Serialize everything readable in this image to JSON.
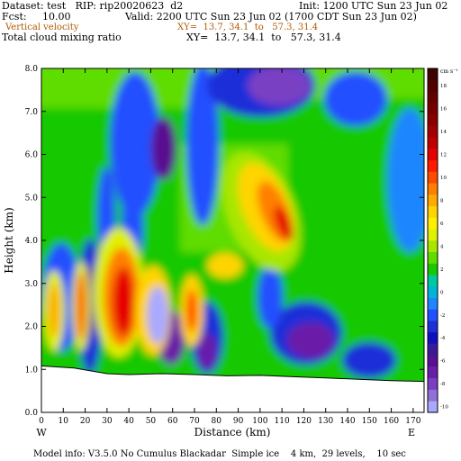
{
  "header": {
    "dataset_line": "Dataset: test   RIP: rip20020623  d2",
    "init_line": "Init: 1200 UTC Sun 23 Jun 02",
    "fcst_line": "Fcst:     10.00",
    "valid_line": "Valid: 2200 UTC Sun 23 Jun 02 (1700 CDT Sun 23 Jun 02)",
    "field1_label": "Vertical velocity",
    "field1_xy": "XY=  13.7, 34.1  to   57.3, 31.4",
    "field2_label": "Total cloud mixing ratio",
    "field2_xy": "XY=  13.7, 34.1  to   57.3, 31.4"
  },
  "footer": {
    "model_info": "Model info: V3.5.0 No Cumulus Blackadar  Simple ice    4 km,  29 levels,    10 sec"
  },
  "colors": {
    "field1_text": "#b05a00",
    "terrain": "#ffffff"
  },
  "chart_data": {
    "type": "heatmap",
    "xlabel": "Distance (km)",
    "ylabel": "Height (km)",
    "xlim": [
      0,
      175
    ],
    "ylim": [
      0,
      8
    ],
    "x_ticks": [
      0,
      10,
      20,
      30,
      40,
      50,
      60,
      70,
      80,
      90,
      100,
      110,
      120,
      130,
      140,
      150,
      160,
      170
    ],
    "y_ticks": [
      0.0,
      1.0,
      2.0,
      3.0,
      4.0,
      5.0,
      6.0,
      7.0,
      8.0
    ],
    "x_tick_labels": [
      "0",
      "10",
      "20",
      "30",
      "40",
      "50",
      "60",
      "70",
      "80",
      "90",
      "100",
      "110",
      "120",
      "130",
      "140",
      "150",
      "160",
      "170"
    ],
    "y_tick_labels": [
      "0.0",
      "1.0",
      "2.0",
      "3.0",
      "4.0",
      "5.0",
      "6.0",
      "7.0",
      "8.0"
    ],
    "left_end_label": "W",
    "right_end_label": "E",
    "colorbar_units": "cm s⁻¹",
    "colorbar_labels": [
      "18",
      "16",
      "14",
      "12",
      "10",
      "8",
      "6",
      "4",
      "2",
      "0",
      "-2",
      "-4",
      "-6",
      "-8",
      "-10"
    ],
    "color_levels": [
      -10,
      -9,
      -8,
      -7,
      -6,
      -5,
      -4,
      -3,
      -2,
      -1,
      0,
      1,
      2,
      3,
      4,
      5,
      6,
      7,
      8,
      9,
      10,
      11,
      12,
      13,
      14,
      15,
      16,
      17,
      18,
      19
    ],
    "color_scale": [
      "#a9a9ff",
      "#8f6fd8",
      "#7a3fc4",
      "#6a1fa8",
      "#5a1090",
      "#3a1a9a",
      "#1010c0",
      "#1c2fd8",
      "#2050ff",
      "#1f86ff",
      "#00b4d8",
      "#00c8a0",
      "#19c800",
      "#5fdc00",
      "#a8e600",
      "#dff000",
      "#fff000",
      "#ffd400",
      "#ffaa00",
      "#ff7f00",
      "#ff4a00",
      "#ff1a00",
      "#e60000",
      "#c20000",
      "#a50000",
      "#8a0000",
      "#760000",
      "#650000",
      "#520000",
      "#3f0000"
    ],
    "terrain_height_km": [
      [
        0,
        1.08
      ],
      [
        15,
        1.03
      ],
      [
        30,
        0.9
      ],
      [
        40,
        0.88
      ],
      [
        55,
        0.9
      ],
      [
        70,
        0.88
      ],
      [
        85,
        0.85
      ],
      [
        100,
        0.86
      ],
      [
        115,
        0.83
      ],
      [
        130,
        0.8
      ],
      [
        145,
        0.77
      ],
      [
        160,
        0.74
      ],
      [
        175,
        0.72
      ]
    ]
  }
}
